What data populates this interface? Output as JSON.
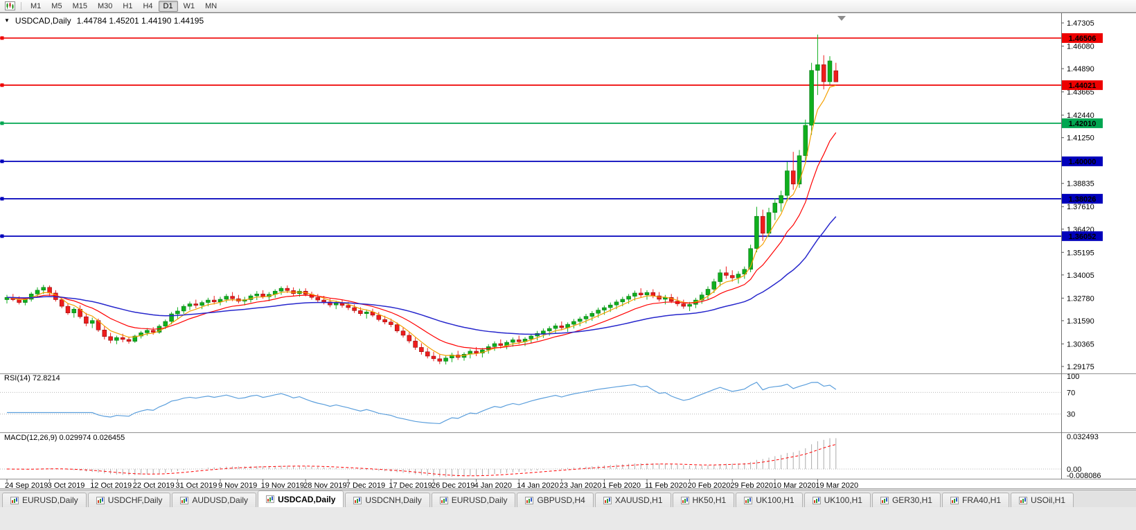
{
  "toolbar": {
    "timeframes": [
      "M1",
      "M5",
      "M15",
      "M30",
      "H1",
      "H4",
      "D1",
      "W1",
      "MN"
    ],
    "active_timeframe": "D1"
  },
  "chart_header": {
    "marker_icon": "▼",
    "symbol": "USDCAD,Daily",
    "ohlc": "1.44784 1.45201 1.44190 1.44195"
  },
  "tabs": {
    "items": [
      "EURUSD,Daily",
      "USDCHF,Daily",
      "AUDUSD,Daily",
      "USDCAD,Daily",
      "USDCNH,Daily",
      "EURUSD,Daily",
      "GBPUSD,H4",
      "XAUUSD,H1",
      "HK50,H1",
      "UK100,H1",
      "UK100,H1",
      "GER30,H1",
      "FRA40,H1",
      "USOil,H1"
    ],
    "active_index": 3
  },
  "chart_data": {
    "type": "candlestick",
    "title": "USDCAD,Daily",
    "symbol": "USDCAD",
    "timeframe": "Daily",
    "current_bar": {
      "open": 1.44784,
      "high": 1.45201,
      "low": 1.4419,
      "close": 1.44195
    },
    "price_range": [
      1.2888,
      1.476
    ],
    "price_axis_ticks": [
      1.47305,
      1.4608,
      1.4489,
      1.43665,
      1.4244,
      1.4125,
      1.40025,
      1.38835,
      1.3761,
      1.3642,
      1.35195,
      1.34005,
      1.3278,
      1.3159,
      1.30365,
      1.29175
    ],
    "hlines": [
      {
        "price": 1.46506,
        "label": "1.46506",
        "color": "#ee0000"
      },
      {
        "price": 1.44021,
        "label": "1.44021",
        "color": "#ee0000"
      },
      {
        "price": 1.4201,
        "label": "1.42010",
        "color": "#00a651"
      },
      {
        "price": 1.4,
        "label": "1.40000",
        "color": "#0000bb"
      },
      {
        "price": 1.38026,
        "label": "1.38026",
        "color": "#0000bb"
      },
      {
        "price": 1.36052,
        "label": "1.36052",
        "color": "#0000bb"
      }
    ],
    "date_labels": [
      "24 Sep 2019",
      "3 Oct 2019",
      "12 Oct 2019",
      "22 Oct 2019",
      "31 Oct 2019",
      "9 Nov 2019",
      "19 Nov 2019",
      "28 Nov 2019",
      "7 Dec 2019",
      "17 Dec 2019",
      "26 Dec 2019",
      "4 Jan 2020",
      "14 Jan 2020",
      "23 Jan 2020",
      "1 Feb 2020",
      "11 Feb 2020",
      "20 Feb 2020",
      "29 Feb 2020",
      "10 Mar 2020",
      "19 Mar 2020"
    ],
    "label_every": 7,
    "colors": {
      "bull": "#0faf1e",
      "bear": "#ee1c1c"
    },
    "moving_averages": [
      {
        "period": 5,
        "color": "#f5a000",
        "width": 1.2
      },
      {
        "period": 13,
        "color": "#ff0000",
        "width": 1.2
      },
      {
        "period": 40,
        "color": "#2626cc",
        "width": 1.5
      }
    ],
    "rsi": {
      "label": "RSI(14) 72.8214",
      "period": 14,
      "value_display": 72.8214,
      "levels": [
        100,
        70,
        30
      ],
      "range": [
        0,
        100
      ],
      "color": "#5a9edc"
    },
    "macd": {
      "label": "MACD(12,26,9) 0.029974 0.026455",
      "fast": 12,
      "slow": 26,
      "signal": 9,
      "macd_display": 0.029974,
      "signal_display": 0.026455,
      "axis_labels": [
        "0.032493",
        "0.00",
        "-0.008086"
      ],
      "range": [
        -0.008086,
        0.032493
      ],
      "hist_color": "#ababab",
      "signal_color": "#ff0000"
    },
    "candles": [
      [
        1.327,
        1.3295,
        1.325,
        1.3282
      ],
      [
        1.3282,
        1.33,
        1.3262,
        1.327
      ],
      [
        1.327,
        1.3288,
        1.3245,
        1.3255
      ],
      [
        1.3255,
        1.328,
        1.324,
        1.3272
      ],
      [
        1.3272,
        1.331,
        1.326,
        1.33
      ],
      [
        1.33,
        1.3335,
        1.3285,
        1.332
      ],
      [
        1.332,
        1.3348,
        1.33,
        1.3335
      ],
      [
        1.3335,
        1.3345,
        1.329,
        1.3305
      ],
      [
        1.3305,
        1.332,
        1.326,
        1.327
      ],
      [
        1.327,
        1.3285,
        1.3225,
        1.3235
      ],
      [
        1.3235,
        1.325,
        1.319,
        1.32
      ],
      [
        1.32,
        1.323,
        1.3175,
        1.322
      ],
      [
        1.322,
        1.324,
        1.317,
        1.318
      ],
      [
        1.318,
        1.32,
        1.313,
        1.3145
      ],
      [
        1.3145,
        1.3175,
        1.312,
        1.316
      ],
      [
        1.316,
        1.317,
        1.31,
        1.311
      ],
      [
        1.311,
        1.313,
        1.306,
        1.3075
      ],
      [
        1.3075,
        1.3095,
        1.304,
        1.3055
      ],
      [
        1.3055,
        1.308,
        1.3035,
        1.307
      ],
      [
        1.307,
        1.309,
        1.3045,
        1.306
      ],
      [
        1.306,
        1.3075,
        1.3038,
        1.305
      ],
      [
        1.305,
        1.3085,
        1.3042,
        1.3078
      ],
      [
        1.3078,
        1.3105,
        1.3065,
        1.3095
      ],
      [
        1.3095,
        1.312,
        1.308,
        1.3108
      ],
      [
        1.3108,
        1.3125,
        1.3085,
        1.3098
      ],
      [
        1.3098,
        1.314,
        1.309,
        1.313
      ],
      [
        1.313,
        1.3165,
        1.3115,
        1.3155
      ],
      [
        1.3155,
        1.3205,
        1.314,
        1.3195
      ],
      [
        1.3195,
        1.323,
        1.317,
        1.321
      ],
      [
        1.321,
        1.3245,
        1.3195,
        1.3235
      ],
      [
        1.3235,
        1.326,
        1.3215,
        1.3248
      ],
      [
        1.3248,
        1.327,
        1.3225,
        1.324
      ],
      [
        1.324,
        1.3265,
        1.322,
        1.3255
      ],
      [
        1.3255,
        1.328,
        1.3235,
        1.3268
      ],
      [
        1.3268,
        1.329,
        1.3245,
        1.3258
      ],
      [
        1.3258,
        1.3285,
        1.324,
        1.3272
      ],
      [
        1.3272,
        1.33,
        1.3255,
        1.3288
      ],
      [
        1.3288,
        1.331,
        1.3262,
        1.3275
      ],
      [
        1.3275,
        1.3295,
        1.325,
        1.3262
      ],
      [
        1.3262,
        1.3285,
        1.324,
        1.327
      ],
      [
        1.327,
        1.33,
        1.3255,
        1.329
      ],
      [
        1.329,
        1.3315,
        1.3268,
        1.33
      ],
      [
        1.33,
        1.332,
        1.3275,
        1.3285
      ],
      [
        1.3285,
        1.331,
        1.3262,
        1.3298
      ],
      [
        1.3298,
        1.3325,
        1.328,
        1.3315
      ],
      [
        1.3315,
        1.334,
        1.3295,
        1.333
      ],
      [
        1.333,
        1.3345,
        1.3305,
        1.3318
      ],
      [
        1.3318,
        1.3335,
        1.329,
        1.3302
      ],
      [
        1.3302,
        1.3328,
        1.3285,
        1.3315
      ],
      [
        1.3315,
        1.333,
        1.3288,
        1.3298
      ],
      [
        1.3298,
        1.3312,
        1.327,
        1.3282
      ],
      [
        1.3282,
        1.33,
        1.3255,
        1.3268
      ],
      [
        1.3268,
        1.329,
        1.3245,
        1.3258
      ],
      [
        1.3258,
        1.3275,
        1.323,
        1.3242
      ],
      [
        1.3242,
        1.3265,
        1.322,
        1.3252
      ],
      [
        1.3252,
        1.327,
        1.3228,
        1.324
      ],
      [
        1.324,
        1.3258,
        1.3215,
        1.3228
      ],
      [
        1.3228,
        1.3245,
        1.32,
        1.3212
      ],
      [
        1.3212,
        1.323,
        1.3185,
        1.3196
      ],
      [
        1.3196,
        1.3218,
        1.317,
        1.3205
      ],
      [
        1.3205,
        1.3222,
        1.3178,
        1.3188
      ],
      [
        1.3188,
        1.3205,
        1.3155,
        1.3165
      ],
      [
        1.3165,
        1.3185,
        1.314,
        1.3152
      ],
      [
        1.3152,
        1.317,
        1.3125,
        1.3138
      ],
      [
        1.3138,
        1.315,
        1.3095,
        1.3105
      ],
      [
        1.3105,
        1.3125,
        1.307,
        1.3082
      ],
      [
        1.3082,
        1.31,
        1.304,
        1.3052
      ],
      [
        1.3052,
        1.307,
        1.3005,
        1.3018
      ],
      [
        1.3018,
        1.304,
        1.298,
        1.2995
      ],
      [
        1.2995,
        1.3015,
        1.296,
        1.2972
      ],
      [
        1.2972,
        1.2995,
        1.2945,
        1.2958
      ],
      [
        1.2958,
        1.298,
        1.293,
        1.2945
      ],
      [
        1.2945,
        1.2975,
        1.2928,
        1.2962
      ],
      [
        1.2962,
        1.299,
        1.294,
        1.2978
      ],
      [
        1.2978,
        1.3,
        1.2952,
        1.2965
      ],
      [
        1.2965,
        1.2992,
        1.2948,
        1.2982
      ],
      [
        1.2982,
        1.301,
        1.296,
        1.2998
      ],
      [
        1.2998,
        1.302,
        1.2972,
        1.2988
      ],
      [
        1.2988,
        1.3015,
        1.2965,
        1.3005
      ],
      [
        1.3005,
        1.3035,
        1.2985,
        1.3022
      ],
      [
        1.3022,
        1.305,
        1.3,
        1.3038
      ],
      [
        1.3038,
        1.306,
        1.3012,
        1.3028
      ],
      [
        1.3028,
        1.3055,
        1.3008,
        1.3045
      ],
      [
        1.3045,
        1.307,
        1.3022,
        1.3058
      ],
      [
        1.3058,
        1.308,
        1.3035,
        1.3048
      ],
      [
        1.3048,
        1.3072,
        1.3025,
        1.3062
      ],
      [
        1.3062,
        1.309,
        1.304,
        1.3078
      ],
      [
        1.3078,
        1.3105,
        1.3055,
        1.3092
      ],
      [
        1.3092,
        1.3118,
        1.3068,
        1.3105
      ],
      [
        1.3105,
        1.313,
        1.308,
        1.3118
      ],
      [
        1.3118,
        1.3145,
        1.3095,
        1.3132
      ],
      [
        1.3132,
        1.3155,
        1.3108,
        1.3122
      ],
      [
        1.3122,
        1.315,
        1.31,
        1.314
      ],
      [
        1.314,
        1.3168,
        1.3118,
        1.3155
      ],
      [
        1.3155,
        1.318,
        1.313,
        1.3168
      ],
      [
        1.3168,
        1.3195,
        1.3145,
        1.3182
      ],
      [
        1.3182,
        1.321,
        1.3158,
        1.3198
      ],
      [
        1.3198,
        1.3228,
        1.3175,
        1.3215
      ],
      [
        1.3215,
        1.324,
        1.319,
        1.3228
      ],
      [
        1.3228,
        1.3255,
        1.3205,
        1.3242
      ],
      [
        1.3242,
        1.327,
        1.322,
        1.3258
      ],
      [
        1.3258,
        1.3285,
        1.3235,
        1.3272
      ],
      [
        1.3272,
        1.33,
        1.3248,
        1.3288
      ],
      [
        1.3288,
        1.3318,
        1.3265,
        1.3305
      ],
      [
        1.3305,
        1.333,
        1.328,
        1.3295
      ],
      [
        1.3295,
        1.332,
        1.327,
        1.3308
      ],
      [
        1.3308,
        1.3325,
        1.3278,
        1.329
      ],
      [
        1.329,
        1.331,
        1.326,
        1.3272
      ],
      [
        1.3272,
        1.3295,
        1.3245,
        1.3282
      ],
      [
        1.3282,
        1.33,
        1.3252,
        1.3262
      ],
      [
        1.3262,
        1.3285,
        1.3235,
        1.3248
      ],
      [
        1.3248,
        1.327,
        1.3222,
        1.3235
      ],
      [
        1.3235,
        1.3258,
        1.321,
        1.3245
      ],
      [
        1.3245,
        1.328,
        1.3225,
        1.3268
      ],
      [
        1.3268,
        1.331,
        1.3248,
        1.3295
      ],
      [
        1.3295,
        1.334,
        1.3272,
        1.3325
      ],
      [
        1.3325,
        1.338,
        1.3305,
        1.3365
      ],
      [
        1.3365,
        1.343,
        1.334,
        1.3412
      ],
      [
        1.3412,
        1.3445,
        1.338,
        1.3398
      ],
      [
        1.3398,
        1.3425,
        1.3365,
        1.3385
      ],
      [
        1.3385,
        1.342,
        1.3355,
        1.3405
      ],
      [
        1.3405,
        1.3445,
        1.338,
        1.343
      ],
      [
        1.343,
        1.356,
        1.3415,
        1.354
      ],
      [
        1.354,
        1.376,
        1.352,
        1.371
      ],
      [
        1.371,
        1.3745,
        1.358,
        1.362
      ],
      [
        1.362,
        1.3755,
        1.36,
        1.373
      ],
      [
        1.373,
        1.3805,
        1.369,
        1.378
      ],
      [
        1.378,
        1.3845,
        1.3735,
        1.382
      ],
      [
        1.382,
        1.3998,
        1.379,
        1.395
      ],
      [
        1.395,
        1.405,
        1.385,
        1.388
      ],
      [
        1.388,
        1.406,
        1.386,
        1.403
      ],
      [
        1.403,
        1.422,
        1.3995,
        1.419
      ],
      [
        1.419,
        1.452,
        1.414,
        1.448
      ],
      [
        1.448,
        1.4669,
        1.435,
        1.451
      ],
      [
        1.451,
        1.456,
        1.438,
        1.442
      ],
      [
        1.442,
        1.4555,
        1.4405,
        1.453
      ],
      [
        1.44784,
        1.45201,
        1.4419,
        1.44195
      ]
    ]
  }
}
